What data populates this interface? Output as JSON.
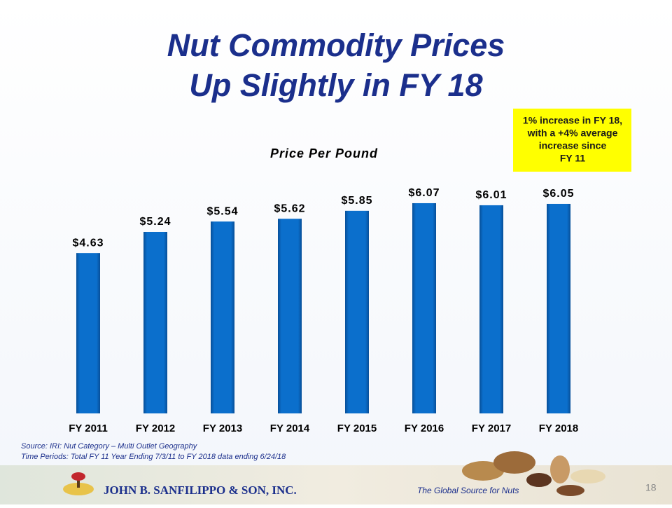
{
  "slide": {
    "title_lines": [
      "Nut Commodity Prices",
      "Up Slightly in FY 18"
    ],
    "source_lines": [
      "Source: IRI: Nut Category – Multi Outlet Geography",
      "Time Periods: Total FY 11 Year Ending 7/3/11 to FY 2018  data ending 6/24/18"
    ],
    "company": "JOHN B. SANFILIPPO & SON, INC.",
    "tagline": "The Global Source for Nuts",
    "page_number": "18"
  },
  "chart_data": {
    "type": "bar",
    "title": "Price Per Pound",
    "categories": [
      "FY 2011",
      "FY 2012",
      "FY 2013",
      "FY 2014",
      "FY 2015",
      "FY 2016",
      "FY 2017",
      "FY 2018"
    ],
    "values": [
      4.63,
      5.24,
      5.54,
      5.62,
      5.85,
      6.07,
      6.01,
      6.05
    ],
    "value_labels": [
      "$4.63",
      "$5.24",
      "$5.54",
      "$5.62",
      "$5.85",
      "$6.07",
      "$6.01",
      "$6.05"
    ],
    "color": "#0b6fcc",
    "ylim": [
      0,
      7
    ],
    "annotation_lines": [
      "1% increase in FY 18,",
      "with a +4% average",
      "increase since",
      "FY 11"
    ]
  }
}
